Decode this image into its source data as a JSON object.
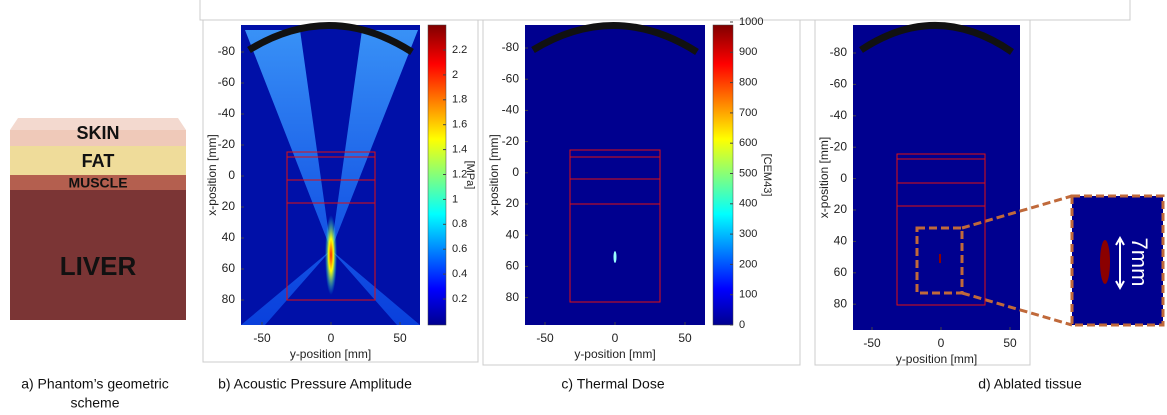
{
  "panels": {
    "a": {
      "layers": [
        "SKIN",
        "FAT",
        "MUSCLE",
        "LIVER"
      ],
      "caption": [
        "a) Phantom’s geometric",
        "scheme"
      ]
    },
    "b": {
      "yticks": [
        -80,
        -60,
        -40,
        -20,
        0,
        20,
        40,
        60,
        80
      ],
      "xticks": [
        -50,
        0,
        50
      ],
      "xlabel": "y-position [mm]",
      "ylabel": "x-position [mm]",
      "colorbar_ticks": [
        0.2,
        0.4,
        0.6,
        0.8,
        1,
        1.2,
        1.4,
        1.6,
        1.8,
        2,
        2.2
      ],
      "colorbar_label": "[MPa]",
      "caption": "b) Acoustic Pressure Amplitude"
    },
    "c": {
      "yticks": [
        -80,
        -60,
        -40,
        -20,
        0,
        20,
        40,
        60,
        80
      ],
      "xticks": [
        -50,
        0,
        50
      ],
      "xlabel": "y-position [mm]",
      "ylabel": "x-position [mm]",
      "colorbar_ticks": [
        0,
        100,
        200,
        300,
        400,
        500,
        600,
        700,
        800,
        900,
        1000
      ],
      "colorbar_label": "[CEM43]",
      "caption": "c) Thermal Dose"
    },
    "d": {
      "yticks": [
        -80,
        -60,
        -40,
        -20,
        0,
        20,
        40,
        60,
        80
      ],
      "xticks": [
        -50,
        0,
        50
      ],
      "xlabel": "y-position [mm]",
      "ylabel": "x-position [mm]",
      "zoom_label": "7mm",
      "caption": "d) Ablated tissue"
    }
  }
}
